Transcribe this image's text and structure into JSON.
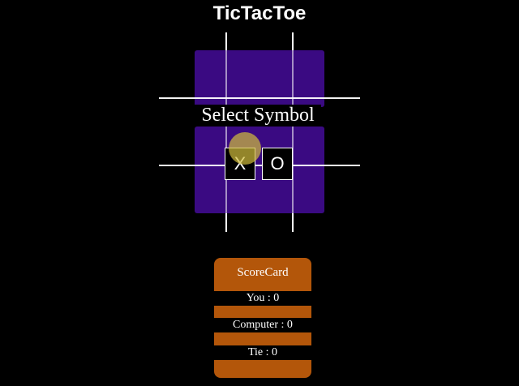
{
  "title": "TicTacToe",
  "overlay": {
    "label": "Select Symbol",
    "options": [
      "X",
      "O"
    ]
  },
  "scorecard": {
    "header": "ScoreCard",
    "you": "You : 0",
    "computer": "Computer : 0",
    "tie": "Tie : 0"
  },
  "colors": {
    "background": "#000000",
    "board": "#3a0a82",
    "scorecard": "#b3560a",
    "grid": "#ffffff"
  }
}
